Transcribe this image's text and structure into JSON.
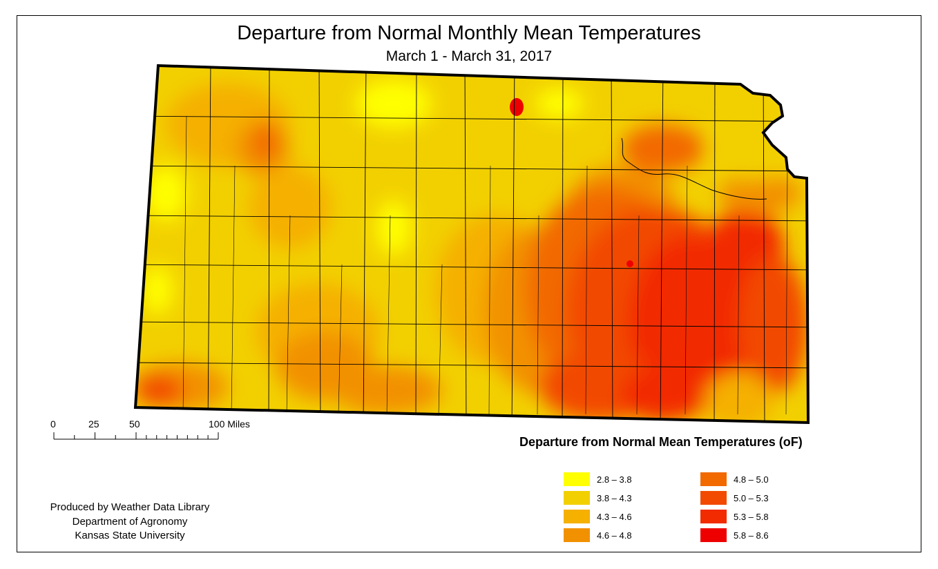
{
  "title": "Departure from Normal Monthly Mean Temperatures",
  "subtitle": "March 1 - March 31, 2017",
  "scale_bar": {
    "ticks": [
      "0",
      "25",
      "50",
      "100 Miles"
    ],
    "values": [
      0,
      25,
      50,
      100
    ]
  },
  "credit": {
    "line1": "Produced by Weather Data Library",
    "line2": "Department of Agronomy",
    "line3": "Kansas State University"
  },
  "legend": {
    "title": "Departure from Normal Mean Temperatures (oF)",
    "items": [
      {
        "label": "2.8 – 3.8",
        "color": "#ffff00"
      },
      {
        "label": "3.8 – 4.3",
        "color": "#f2d000"
      },
      {
        "label": "4.3 – 4.6",
        "color": "#f5b000"
      },
      {
        "label": "4.6 – 4.8",
        "color": "#f29100"
      },
      {
        "label": "4.8 – 5.0",
        "color": "#f26900"
      },
      {
        "label": "5.0 – 5.3",
        "color": "#f24a00"
      },
      {
        "label": "5.3 – 5.8",
        "color": "#f22b00"
      },
      {
        "label": "5.8 – 8.6",
        "color": "#ee0000"
      }
    ]
  }
}
